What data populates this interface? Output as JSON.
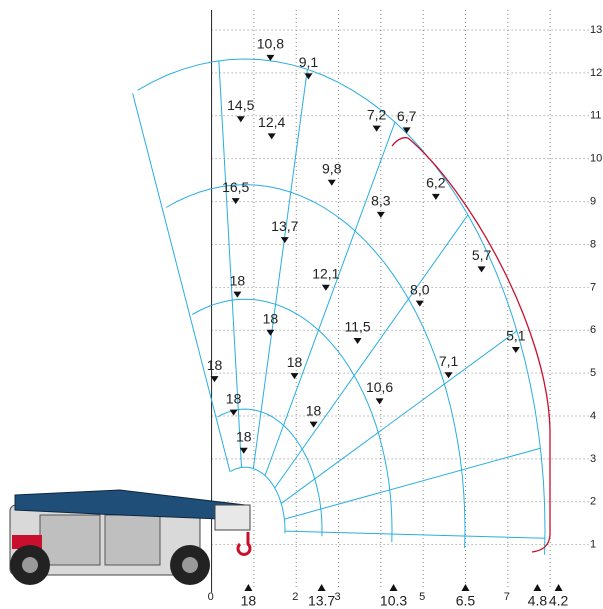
{
  "chart_data": {
    "type": "load-chart",
    "xlim": [
      -5,
      9.25
    ],
    "ylim": [
      -0.5,
      13.7
    ],
    "xticks": [
      0,
      2,
      3,
      5,
      7
    ],
    "yticks": [
      1,
      2,
      3,
      4,
      5,
      6,
      7,
      8,
      9,
      10,
      11,
      12,
      13
    ],
    "xgrid": [
      1,
      2,
      3,
      4,
      5,
      6,
      7,
      8
    ],
    "grid": true,
    "points": {
      "x": [
        1.39,
        2.29,
        0.69,
        1.42,
        3.9,
        4.61,
        5.3,
        2.84,
        0.57,
        1.73,
        4.0,
        6.38,
        2.7,
        0.61,
        4.92,
        1.39,
        3.45,
        7.19,
        0.07,
        1.96,
        5.6,
        3.97,
        0.52,
        2.41,
        0.76
      ],
      "y": [
        12.28,
        11.85,
        10.85,
        10.45,
        10.63,
        10.59,
        9.04,
        9.37,
        8.94,
        8.03,
        8.62,
        7.35,
        6.92,
        6.76,
        6.55,
        5.87,
        5.68,
        5.47,
        4.79,
        4.86,
        4.88,
        4.27,
        4.01,
        3.73,
        3.12
      ],
      "loads": [
        "10,8",
        "9,1",
        "14,5",
        "12,4",
        "7,2",
        "6,7",
        "6,2",
        "9,8",
        "16,5",
        "13,7",
        "8,3",
        "5,7",
        "12,1",
        "18",
        "8,0",
        "18",
        "11,5",
        "5,1",
        "18",
        "18",
        "7,1",
        "10,6",
        "18",
        "18",
        "18"
      ]
    },
    "ground_loads": {
      "x": [
        0.87,
        2.6,
        4.3,
        6.0,
        7.7,
        8.2
      ],
      "values": [
        18,
        13.7,
        10.3,
        6.5,
        4.8,
        4.2
      ]
    },
    "mesh_color": "#29aee0",
    "envelope_color": "#c8102e"
  }
}
